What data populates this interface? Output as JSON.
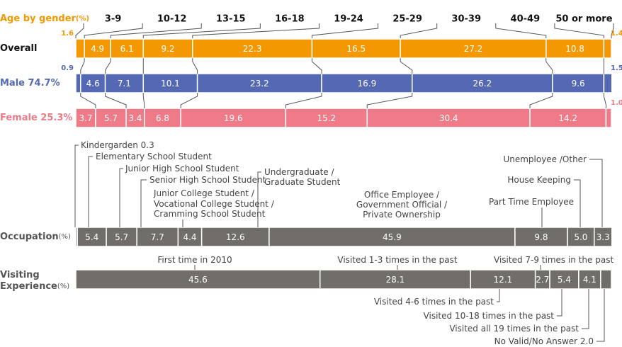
{
  "chart_data": [
    {
      "type": "stacked_rows",
      "title": "Age by gender",
      "unit": "(%)",
      "categories": [
        "3-9",
        "10-12",
        "13-15",
        "16-18",
        "19-24",
        "25-29",
        "30-39",
        "40-49",
        "50 or more"
      ],
      "series": [
        {
          "name": "Overall",
          "color": "#f39800",
          "values": [
            1.6,
            4.9,
            6.1,
            9.2,
            22.3,
            16.5,
            27.2,
            10.8,
            1.4
          ],
          "value_labels": [
            "1.6",
            "4.9",
            "6.1",
            "9.2",
            "22.3",
            "16.5",
            "27.2",
            "10.8",
            "1.4"
          ]
        },
        {
          "name": "Male 74.7%",
          "color": "#5468b4",
          "values": [
            0.9,
            4.6,
            7.1,
            10.1,
            23.2,
            16.9,
            26.2,
            9.6,
            1.5
          ],
          "value_labels": [
            "0.9",
            "4.6",
            "7.1",
            "10.1",
            "23.2",
            "16.9",
            "26.2",
            "9.6",
            "1.5"
          ]
        },
        {
          "name": "Female 25.3%",
          "color": "#ee7b87",
          "values": [
            3.7,
            5.7,
            3.4,
            6.8,
            19.6,
            15.2,
            30.4,
            14.2,
            1.0
          ],
          "value_labels": [
            "3.7",
            "5.7",
            "3.4",
            "6.8",
            "19.6",
            "15.2",
            "30.4",
            "14.2",
            "1.0"
          ]
        }
      ]
    },
    {
      "type": "stacked_callouts",
      "unit": "(%)",
      "color": "#716d69",
      "series": [
        {
          "name": [
            "Occupation"
          ],
          "categories": [
            [
              "Kindergarden"
            ],
            [
              "Elementary School Student"
            ],
            [
              "Junior High School Student"
            ],
            [
              "Senior High School Student"
            ],
            [
              "Junior College Student /",
              "Vocational College Student /",
              "Cramming School Student"
            ],
            [
              "Undergraduate /",
              "Graduate Student"
            ],
            [
              "Office Employee /",
              "Government Official /",
              "Private Ownership"
            ],
            [
              "Part Time Employee"
            ],
            [
              "House Keeping"
            ],
            [
              "Unemployee /Other"
            ]
          ],
          "values": [
            0.3,
            5.4,
            5.7,
            7.7,
            4.4,
            12.6,
            45.9,
            9.8,
            5.0,
            3.3
          ],
          "value_labels": [
            "0.3",
            "5.4",
            "5.7",
            "7.7",
            "4.4",
            "12.6",
            "45.9",
            "9.8",
            "5.0",
            "3.3"
          ]
        },
        {
          "name": [
            "Visiting",
            "Experience"
          ],
          "categories": [
            [
              "First time in 2010"
            ],
            [
              "Visited 1-3 times in the past"
            ],
            [
              "Visited 4-6 times in the past"
            ],
            [
              "Visited 7-9 times in the past"
            ],
            [
              "Visited 10-18 times in the past"
            ],
            [
              "Visited all 19 times in the past"
            ],
            [
              "No Valid/No Answer"
            ]
          ],
          "values": [
            45.6,
            28.1,
            12.1,
            2.7,
            5.4,
            4.1,
            2.0
          ],
          "value_labels": [
            "45.6",
            "28.1",
            "12.1",
            "2.7",
            "5.4",
            "4.1",
            "2.0"
          ]
        }
      ]
    }
  ]
}
